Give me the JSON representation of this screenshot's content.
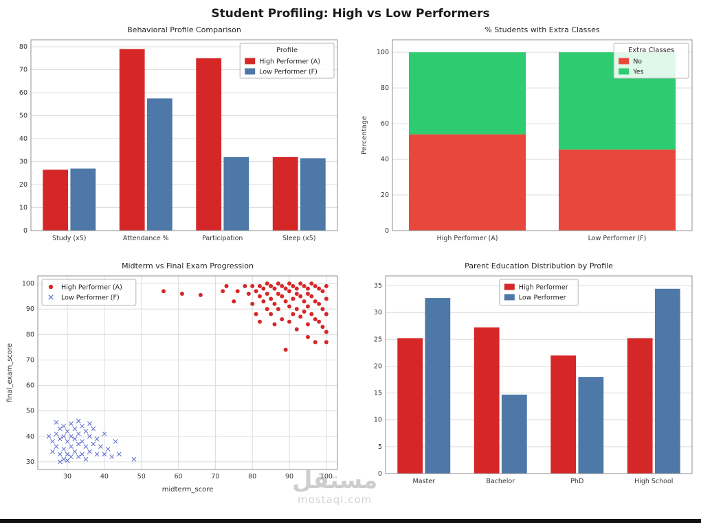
{
  "page": {
    "title": "Student Profiling: High vs Low Performers"
  },
  "watermark": {
    "word": "مستقل",
    "site": "mostaql.com"
  },
  "chart_data": [
    {
      "type": "bar",
      "title": "Behavioral Profile Comparison",
      "categories": [
        "Study (x5)",
        "Attendance %",
        "Participation",
        "Sleep (x5)"
      ],
      "series": [
        {
          "name": "High Performer (A)",
          "color": "#d62728",
          "values": [
            26.5,
            79,
            75,
            32
          ]
        },
        {
          "name": "Low Performer (F)",
          "color": "#4d78a8",
          "values": [
            27,
            57.5,
            32,
            31.5
          ]
        }
      ],
      "ylim": [
        0,
        83
      ],
      "yticks": [
        0,
        10,
        20,
        30,
        40,
        50,
        60,
        70,
        80
      ],
      "legend_title": "Profile",
      "legend_pos": "ne",
      "grid": "horizontal"
    },
    {
      "type": "stacked_bar",
      "title": "% Students with Extra Classes",
      "categories": [
        "High Performer (A)",
        "Low Performer (F)"
      ],
      "series": [
        {
          "name": "No",
          "color": "#e8483b",
          "values": [
            54,
            45.5
          ]
        },
        {
          "name": "Yes",
          "color": "#2ecc71",
          "values": [
            46,
            54.5
          ]
        }
      ],
      "ylabel": "Percentage",
      "ylim": [
        0,
        107
      ],
      "yticks": [
        0,
        20,
        40,
        60,
        80,
        100
      ],
      "legend_title": "Extra Classes",
      "legend_pos": "ne",
      "grid": "horizontal"
    },
    {
      "type": "scatter",
      "title": "Midterm vs Final Exam Progression",
      "xlabel": "midterm_score",
      "ylabel": "final_exam_score",
      "xlim": [
        22,
        103
      ],
      "ylim": [
        27,
        103
      ],
      "xticks": [
        30,
        40,
        50,
        60,
        70,
        80,
        90,
        100
      ],
      "yticks": [
        30,
        40,
        50,
        60,
        70,
        80,
        90,
        100
      ],
      "legend_pos": "nw",
      "grid": "both",
      "series": [
        {
          "name": "High Performer (A)",
          "color": "#d62728",
          "marker": "point",
          "points": [
            [
              56,
              97
            ],
            [
              61,
              96
            ],
            [
              66,
              95.5
            ],
            [
              72,
              97
            ],
            [
              73,
              99
            ],
            [
              75,
              93
            ],
            [
              76,
              97
            ],
            [
              78,
              99
            ],
            [
              79,
              96
            ],
            [
              80,
              99
            ],
            [
              80,
              92
            ],
            [
              81,
              97
            ],
            [
              81,
              88
            ],
            [
              82,
              99
            ],
            [
              82,
              95
            ],
            [
              82,
              85
            ],
            [
              83,
              98
            ],
            [
              83,
              93
            ],
            [
              84,
              100
            ],
            [
              84,
              96
            ],
            [
              84,
              90
            ],
            [
              85,
              99
            ],
            [
              85,
              94
            ],
            [
              85,
              88
            ],
            [
              86,
              98
            ],
            [
              86,
              92
            ],
            [
              86,
              84
            ],
            [
              87,
              100
            ],
            [
              87,
              96
            ],
            [
              87,
              90
            ],
            [
              88,
              99
            ],
            [
              88,
              95
            ],
            [
              88,
              86
            ],
            [
              89,
              98
            ],
            [
              89,
              93
            ],
            [
              89,
              74
            ],
            [
              90,
              100
            ],
            [
              90,
              97
            ],
            [
              90,
              91
            ],
            [
              90,
              85
            ],
            [
              91,
              99
            ],
            [
              91,
              94
            ],
            [
              91,
              88
            ],
            [
              92,
              98
            ],
            [
              92,
              96
            ],
            [
              92,
              90
            ],
            [
              92,
              82
            ],
            [
              93,
              100
            ],
            [
              93,
              95
            ],
            [
              93,
              87
            ],
            [
              94,
              99
            ],
            [
              94,
              93
            ],
            [
              94,
              89
            ],
            [
              95,
              98
            ],
            [
              95,
              96
            ],
            [
              95,
              91
            ],
            [
              95,
              84
            ],
            [
              96,
              100
            ],
            [
              96,
              95
            ],
            [
              96,
              88
            ],
            [
              97,
              99
            ],
            [
              97,
              93
            ],
            [
              97,
              86
            ],
            [
              98,
              98
            ],
            [
              98,
              92
            ],
            [
              98,
              85
            ],
            [
              99,
              97
            ],
            [
              99,
              90
            ],
            [
              99,
              83
            ],
            [
              100,
              99
            ],
            [
              100,
              94
            ],
            [
              100,
              88
            ],
            [
              100,
              81
            ],
            [
              100,
              77
            ],
            [
              97,
              77
            ],
            [
              95,
              79
            ]
          ]
        },
        {
          "name": "Low Performer (F)",
          "color": "#5a6acf",
          "marker": "x",
          "points": [
            [
              25,
              40
            ],
            [
              26,
              38
            ],
            [
              26,
              34
            ],
            [
              27,
              45.5
            ],
            [
              27,
              41
            ],
            [
              27,
              36
            ],
            [
              28,
              43
            ],
            [
              28,
              39
            ],
            [
              28,
              33
            ],
            [
              29,
              44
            ],
            [
              29,
              40
            ],
            [
              29,
              35
            ],
            [
              29,
              31
            ],
            [
              30,
              42
            ],
            [
              30,
              38
            ],
            [
              30,
              33
            ],
            [
              31,
              45
            ],
            [
              31,
              40
            ],
            [
              31,
              36
            ],
            [
              31,
              32
            ],
            [
              32,
              43
            ],
            [
              32,
              39
            ],
            [
              32,
              34
            ],
            [
              33,
              41
            ],
            [
              33,
              37
            ],
            [
              33,
              32
            ],
            [
              34,
              44
            ],
            [
              34,
              38
            ],
            [
              34,
              33
            ],
            [
              35,
              42
            ],
            [
              35,
              36
            ],
            [
              35,
              31
            ],
            [
              36,
              40
            ],
            [
              36,
              34
            ],
            [
              37,
              43
            ],
            [
              37,
              37
            ],
            [
              38,
              39
            ],
            [
              38,
              33
            ],
            [
              39,
              36
            ],
            [
              40,
              41
            ],
            [
              40,
              33
            ],
            [
              41,
              35
            ],
            [
              42,
              32
            ],
            [
              43,
              38
            ],
            [
              44,
              33
            ],
            [
              48,
              31
            ],
            [
              30,
              30.5
            ],
            [
              28,
              30
            ],
            [
              33,
              46
            ],
            [
              36,
              45
            ]
          ]
        }
      ]
    },
    {
      "type": "bar",
      "title": "Parent Education Distribution by Profile",
      "categories": [
        "Master",
        "Bachelor",
        "PhD",
        "High School"
      ],
      "series": [
        {
          "name": "High Performer",
          "color": "#d62728",
          "values": [
            25.2,
            27.2,
            22.0,
            25.2
          ]
        },
        {
          "name": "Low Performer",
          "color": "#4d78a8",
          "values": [
            32.7,
            14.7,
            18.0,
            34.4
          ]
        }
      ],
      "ylim": [
        0,
        36.8
      ],
      "yticks": [
        0,
        5,
        10,
        15,
        20,
        25,
        30,
        35
      ],
      "legend_pos": "n",
      "grid": "horizontal"
    }
  ]
}
